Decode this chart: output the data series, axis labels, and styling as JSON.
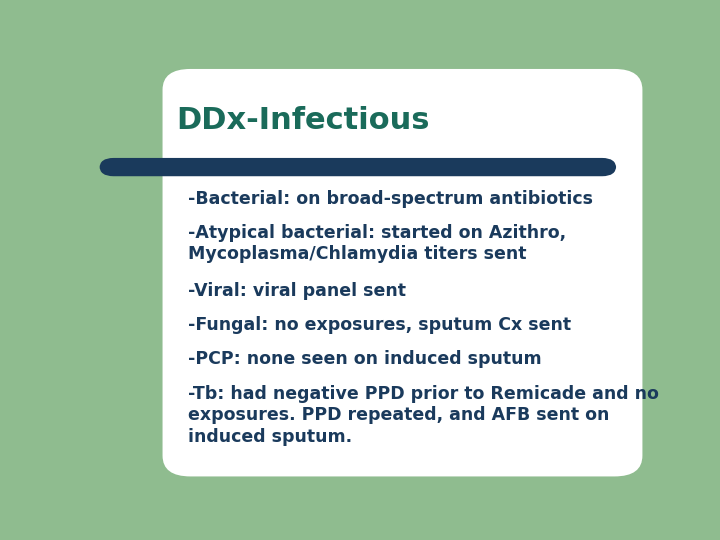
{
  "title": "DDx-Infectious",
  "title_color": "#1a6b5a",
  "title_fontsize": 22,
  "bg_color": "#ffffff",
  "left_bar_color": "#8fbc8f",
  "divider_color": "#1a3a5c",
  "body_text_color": "#1a3a5c",
  "body_fontsize": 12.5,
  "lines": [
    "-Bacterial: on broad-spectrum antibiotics",
    "-Atypical bacterial: started on Azithro,\nMycoplasma/Chlamydia titers sent",
    "-Viral: viral panel sent",
    "-Fungal: no exposures, sputum Cx sent",
    "-PCP: none seen on induced sputum",
    "-Tb: had negative PPD prior to Remicade and no\nexposures. PPD repeated, and AFB sent on\ninduced sputum."
  ],
  "slide_bg": "#8fbc8f"
}
